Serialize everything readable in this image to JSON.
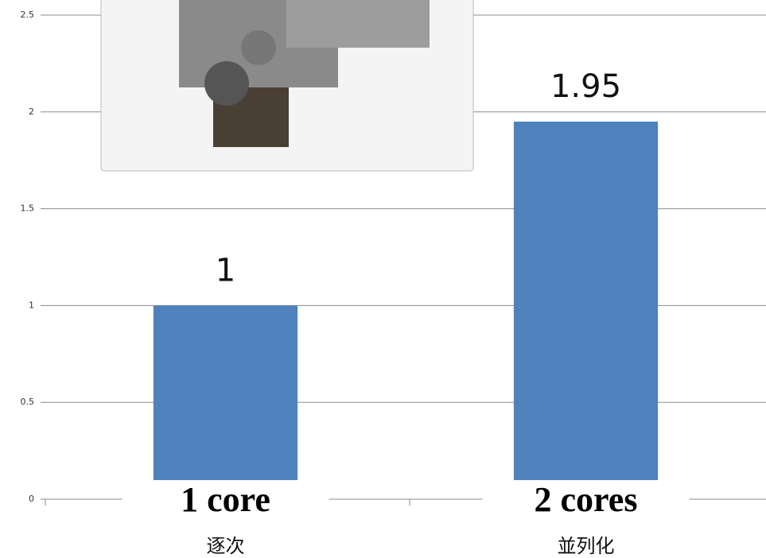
{
  "chart_data": {
    "type": "bar",
    "categories": [
      "逐次",
      "並列化"
    ],
    "values": [
      1,
      1.95
    ],
    "color": "#4f81bd",
    "ylim": [
      0,
      2.5
    ],
    "yticks": [
      0,
      0.5,
      1,
      1.5,
      2,
      2.5
    ],
    "grid": true,
    "annotations": [
      "1 core",
      "2 cores"
    ]
  }
}
